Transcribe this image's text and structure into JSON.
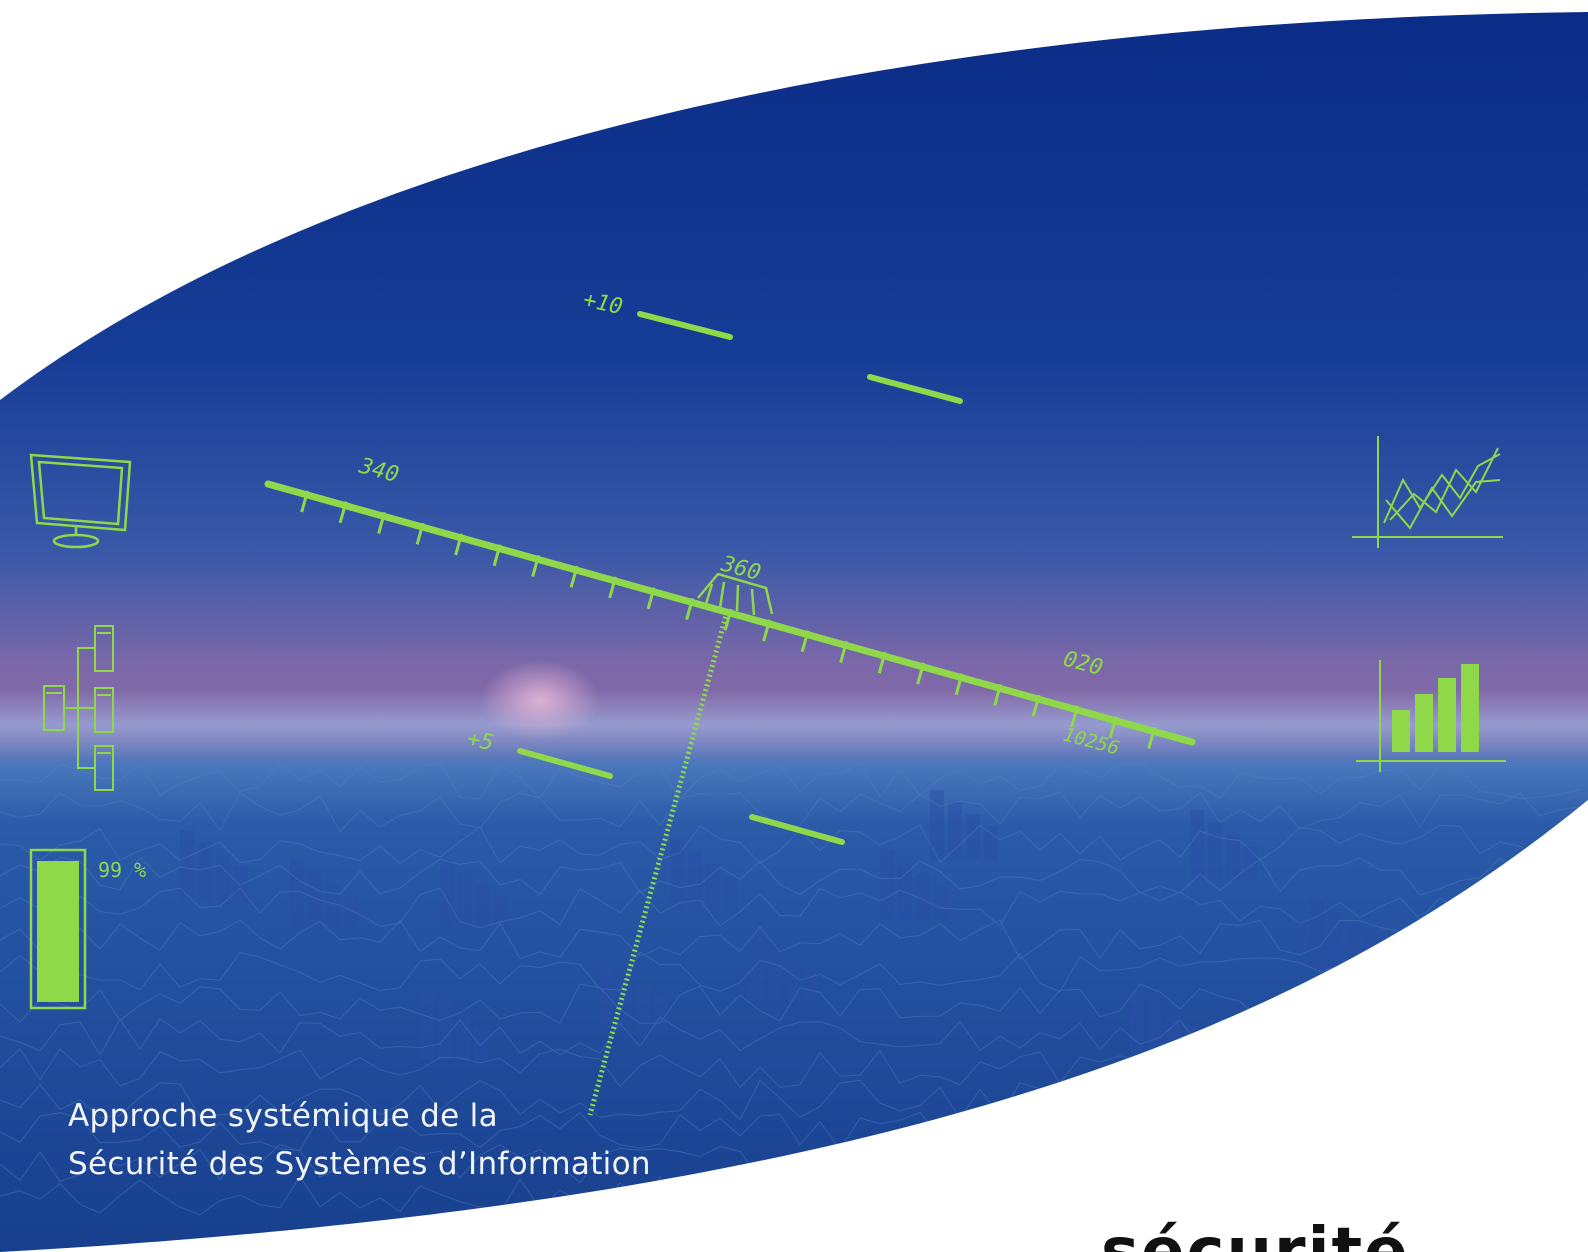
{
  "hud": {
    "pitch_upper_label": "+10",
    "pitch_lower_label": "+5",
    "heading_left": "340",
    "heading_center": "360",
    "heading_right": "020",
    "altitude": "10256",
    "gauge_label": "99 %",
    "gauge_level": 0.99
  },
  "caption": {
    "line1": "Approche systémique de la",
    "line2": "Sécurité des Systèmes d’Information"
  },
  "bottom_title": "…sécurité",
  "colors": {
    "hud_green": "#8fd84a",
    "sky_top": "#0d2f8c",
    "horizon_violet": "#8a6aa8",
    "earth_blue": "#1d4d9c"
  },
  "icons": [
    "monitor-icon",
    "server-tree-icon",
    "line-chart-icon",
    "bar-chart-icon"
  ]
}
